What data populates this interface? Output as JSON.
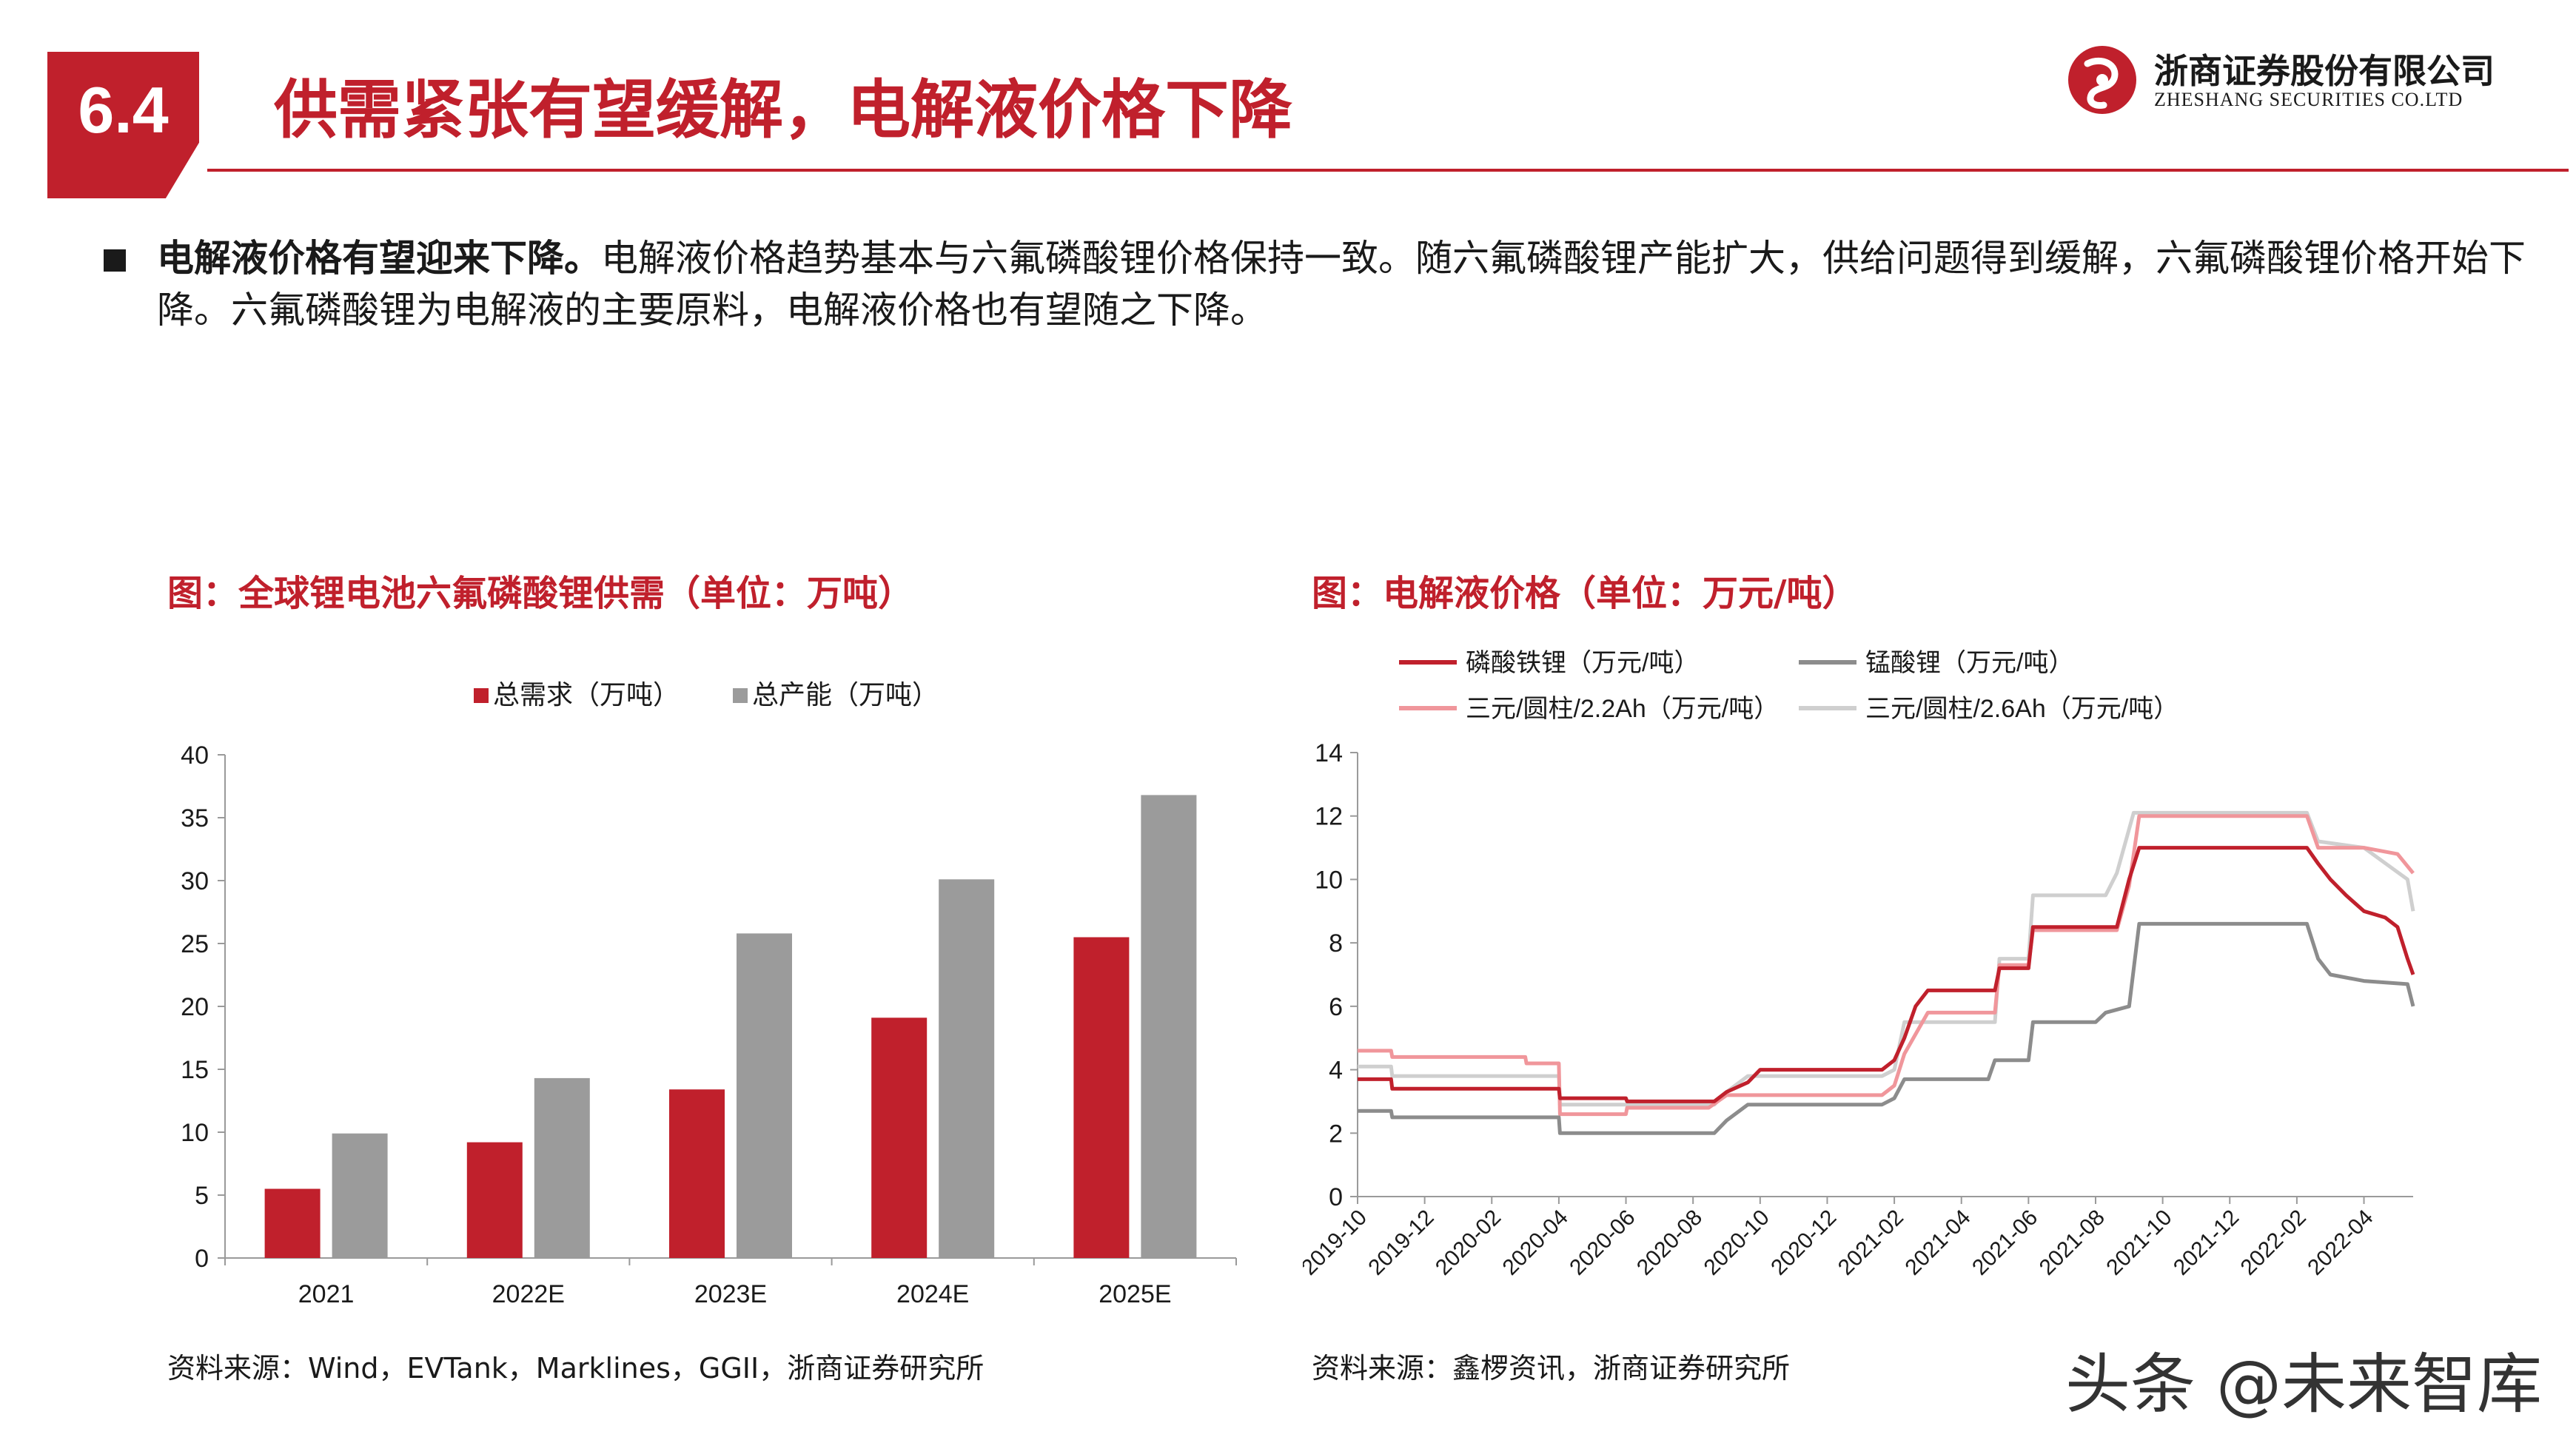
{
  "header": {
    "section_number": "6.4",
    "title": "供需紧张有望缓解，电解液价格下降",
    "logo_cn": "浙商证券股份有限公司",
    "logo_en": "ZHESHANG SECURITIES CO.LTD"
  },
  "body": {
    "lead": "电解液价格有望迎来下降。",
    "text": "电解液价格趋势基本与六氟磷酸锂价格保持一致。随六氟磷酸锂产能扩大，供给问题得到缓解，六氟磷酸锂价格开始下降。六氟磷酸锂为电解液的主要原料，电解液价格也有望随之下降。"
  },
  "left_chart": {
    "title": "图：全球锂电池六氟磷酸锂供需（单位：万吨）",
    "source": "资料来源：Wind，EVTank，Marklines，GGII，浙商证券研究所"
  },
  "right_chart": {
    "title": "图：电解液价格（单位：万元/吨）",
    "source": "资料来源：鑫椤资讯，浙商证券研究所"
  },
  "watermark": "头条 @未来智库",
  "chart_data": [
    {
      "type": "bar",
      "categories": [
        "2021",
        "2022E",
        "2023E",
        "2024E",
        "2025E"
      ],
      "series": [
        {
          "name": "总需求（万吨）",
          "values": [
            5.5,
            9.2,
            13.4,
            19.1,
            25.5
          ],
          "color": "#c0202c"
        },
        {
          "name": "总产能（万吨）",
          "values": [
            9.9,
            14.3,
            25.8,
            30.1,
            36.8
          ],
          "color": "#9b9b9b"
        }
      ],
      "ylim": [
        0,
        40
      ],
      "yticks": [
        0,
        5,
        10,
        15,
        20,
        25,
        30,
        35,
        40
      ],
      "legend": "top-center",
      "grid": false
    },
    {
      "type": "line",
      "x_ticks": [
        "2019-10",
        "2019-12",
        "2020-02",
        "2020-04",
        "2020-06",
        "2020-08",
        "2020-10",
        "2020-12",
        "2021-02",
        "2021-04",
        "2021-06",
        "2021-08",
        "2021-10",
        "2021-12",
        "2022-02",
        "2022-04"
      ],
      "ylim": [
        0,
        14
      ],
      "yticks": [
        0,
        2,
        4,
        6,
        8,
        10,
        12,
        14
      ],
      "legend": "top",
      "grid": false,
      "series": [
        {
          "name": "磷酸铁锂（万元/吨）",
          "color": "#c0202c",
          "points": [
            [
              "2019-10-01",
              3.7
            ],
            [
              "2019-11-01",
              3.7
            ],
            [
              "2019-11-02",
              3.4
            ],
            [
              "2020-04-01",
              3.4
            ],
            [
              "2020-04-02",
              3.1
            ],
            [
              "2020-06-01",
              3.1
            ],
            [
              "2020-06-02",
              3.0
            ],
            [
              "2020-08-20",
              3.0
            ],
            [
              "2020-09-01",
              3.3
            ],
            [
              "2020-09-20",
              3.6
            ],
            [
              "2020-10-01",
              4.0
            ],
            [
              "2021-01-20",
              4.0
            ],
            [
              "2021-02-01",
              4.3
            ],
            [
              "2021-02-10",
              5.0
            ],
            [
              "2021-02-20",
              6.0
            ],
            [
              "2021-03-01",
              6.5
            ],
            [
              "2021-05-01",
              6.5
            ],
            [
              "2021-05-05",
              7.2
            ],
            [
              "2021-06-01",
              7.2
            ],
            [
              "2021-06-05",
              8.5
            ],
            [
              "2021-08-20",
              8.5
            ],
            [
              "2021-09-01",
              10.0
            ],
            [
              "2021-09-10",
              11.0
            ],
            [
              "2022-02-10",
              11.0
            ],
            [
              "2022-02-20",
              10.5
            ],
            [
              "2022-03-01",
              10.0
            ],
            [
              "2022-03-15",
              9.5
            ],
            [
              "2022-04-01",
              9.0
            ],
            [
              "2022-04-20",
              8.8
            ],
            [
              "2022-05-01",
              8.5
            ],
            [
              "2022-05-10",
              7.5
            ],
            [
              "2022-05-15",
              7.0
            ]
          ]
        },
        {
          "name": "锰酸锂（万元/吨）",
          "color": "#8c8c8c",
          "points": [
            [
              "2019-10-01",
              2.7
            ],
            [
              "2019-11-01",
              2.7
            ],
            [
              "2019-11-02",
              2.5
            ],
            [
              "2020-04-01",
              2.5
            ],
            [
              "2020-04-02",
              2.0
            ],
            [
              "2020-08-20",
              2.0
            ],
            [
              "2020-09-01",
              2.4
            ],
            [
              "2020-09-20",
              2.9
            ],
            [
              "2021-01-20",
              2.9
            ],
            [
              "2021-02-01",
              3.1
            ],
            [
              "2021-02-10",
              3.7
            ],
            [
              "2021-04-25",
              3.7
            ],
            [
              "2021-05-01",
              4.3
            ],
            [
              "2021-06-01",
              4.3
            ],
            [
              "2021-06-05",
              5.5
            ],
            [
              "2021-08-01",
              5.5
            ],
            [
              "2021-08-10",
              5.8
            ],
            [
              "2021-09-01",
              6.0
            ],
            [
              "2021-09-10",
              8.6
            ],
            [
              "2022-02-10",
              8.6
            ],
            [
              "2022-02-20",
              7.5
            ],
            [
              "2022-03-01",
              7.0
            ],
            [
              "2022-04-01",
              6.8
            ],
            [
              "2022-05-10",
              6.7
            ],
            [
              "2022-05-15",
              6.0
            ]
          ]
        },
        {
          "name": "三元/圆柱/2.2Ah（万元/吨）",
          "color": "#f0969b",
          "points": [
            [
              "2019-10-01",
              4.6
            ],
            [
              "2019-11-01",
              4.6
            ],
            [
              "2019-11-02",
              4.4
            ],
            [
              "2020-03-01",
              4.4
            ],
            [
              "2020-03-02",
              4.2
            ],
            [
              "2020-04-01",
              4.2
            ],
            [
              "2020-04-02",
              2.6
            ],
            [
              "2020-06-01",
              2.6
            ],
            [
              "2020-06-02",
              2.8
            ],
            [
              "2020-08-15",
              2.8
            ],
            [
              "2020-09-01",
              3.2
            ],
            [
              "2021-01-20",
              3.2
            ],
            [
              "2021-02-01",
              3.5
            ],
            [
              "2021-02-10",
              4.5
            ],
            [
              "2021-03-01",
              5.8
            ],
            [
              "2021-05-01",
              5.8
            ],
            [
              "2021-05-05",
              7.3
            ],
            [
              "2021-06-01",
              7.3
            ],
            [
              "2021-06-05",
              8.4
            ],
            [
              "2021-08-20",
              8.4
            ],
            [
              "2021-09-01",
              9.8
            ],
            [
              "2021-09-10",
              12.0
            ],
            [
              "2022-02-10",
              12.0
            ],
            [
              "2022-02-20",
              11.0
            ],
            [
              "2022-04-01",
              11.0
            ],
            [
              "2022-05-01",
              10.8
            ],
            [
              "2022-05-15",
              10.2
            ]
          ]
        },
        {
          "name": "三元/圆柱/2.6Ah（万元/吨）",
          "color": "#cfcfcf",
          "points": [
            [
              "2019-10-01",
              4.1
            ],
            [
              "2019-11-01",
              4.1
            ],
            [
              "2019-11-02",
              3.8
            ],
            [
              "2020-04-01",
              3.8
            ],
            [
              "2020-04-02",
              2.9
            ],
            [
              "2020-08-20",
              2.9
            ],
            [
              "2020-09-01",
              3.3
            ],
            [
              "2020-09-20",
              3.8
            ],
            [
              "2021-01-20",
              3.8
            ],
            [
              "2021-02-01",
              4.0
            ],
            [
              "2021-02-10",
              5.5
            ],
            [
              "2021-05-01",
              5.5
            ],
            [
              "2021-05-05",
              7.5
            ],
            [
              "2021-06-01",
              7.5
            ],
            [
              "2021-06-05",
              9.5
            ],
            [
              "2021-08-10",
              9.5
            ],
            [
              "2021-08-20",
              10.2
            ],
            [
              "2021-09-05",
              12.1
            ],
            [
              "2022-02-10",
              12.1
            ],
            [
              "2022-02-20",
              11.2
            ],
            [
              "2022-04-01",
              11.0
            ],
            [
              "2022-05-10",
              10.0
            ],
            [
              "2022-05-15",
              9.0
            ]
          ]
        }
      ]
    }
  ]
}
